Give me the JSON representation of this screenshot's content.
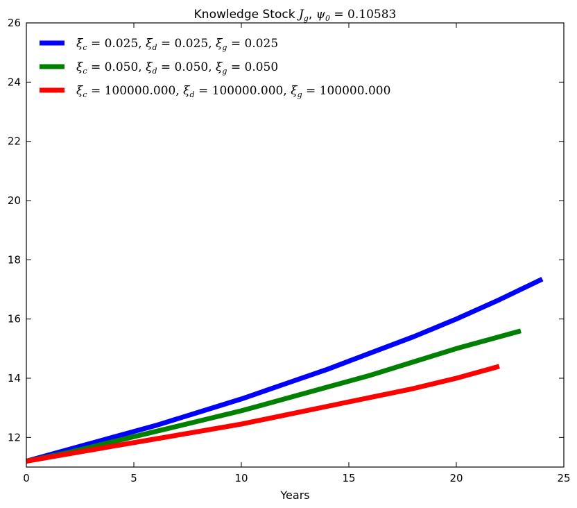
{
  "chart_data": {
    "type": "line",
    "title": "Knowledge Stock J_g, ψ_0 = 0.10583",
    "title_parts": {
      "prefix": "Knowledge Stock ",
      "var": "J",
      "var_sub": "g",
      "sep": ", ",
      "param": "ψ",
      "param_sub": "0",
      "eq": " = 0.10583"
    },
    "xlabel": "Years",
    "ylabel": "",
    "xlim": [
      0,
      25
    ],
    "ylim": [
      11,
      26
    ],
    "xticks": [
      0,
      5,
      10,
      15,
      20,
      25
    ],
    "yticks": [
      12,
      14,
      16,
      18,
      20,
      22,
      24,
      26
    ],
    "grid": false,
    "legend_position": "top-left",
    "series": [
      {
        "name": "ξ_c = 0.025, ξ_d = 0.025, ξ_g = 0.025",
        "legend_value": "0.025",
        "color": "#0000ff",
        "x": [
          0,
          2,
          4,
          6,
          8,
          10,
          12,
          14,
          16,
          18,
          20,
          22,
          24
        ],
        "y": [
          11.2,
          11.6,
          12.0,
          12.4,
          12.85,
          13.3,
          13.8,
          14.3,
          14.85,
          15.4,
          16.0,
          16.65,
          17.35
        ]
      },
      {
        "name": "ξ_c = 0.050, ξ_d = 0.050, ξ_g = 0.050",
        "legend_value": "0.050",
        "color": "#008000",
        "x": [
          0,
          2,
          4,
          6,
          8,
          10,
          12,
          14,
          16,
          18,
          20,
          22,
          23
        ],
        "y": [
          11.2,
          11.5,
          11.85,
          12.2,
          12.55,
          12.9,
          13.3,
          13.7,
          14.1,
          14.55,
          15.0,
          15.4,
          15.6
        ]
      },
      {
        "name": "ξ_c = 100000.000, ξ_d = 100000.000, ξ_g = 100000.000",
        "legend_value": "100000.000",
        "color": "#ff0000",
        "x": [
          0,
          2,
          4,
          6,
          8,
          10,
          12,
          14,
          16,
          18,
          20,
          22
        ],
        "y": [
          11.2,
          11.45,
          11.7,
          11.95,
          12.2,
          12.45,
          12.75,
          13.05,
          13.35,
          13.65,
          14.0,
          14.4
        ]
      }
    ]
  }
}
